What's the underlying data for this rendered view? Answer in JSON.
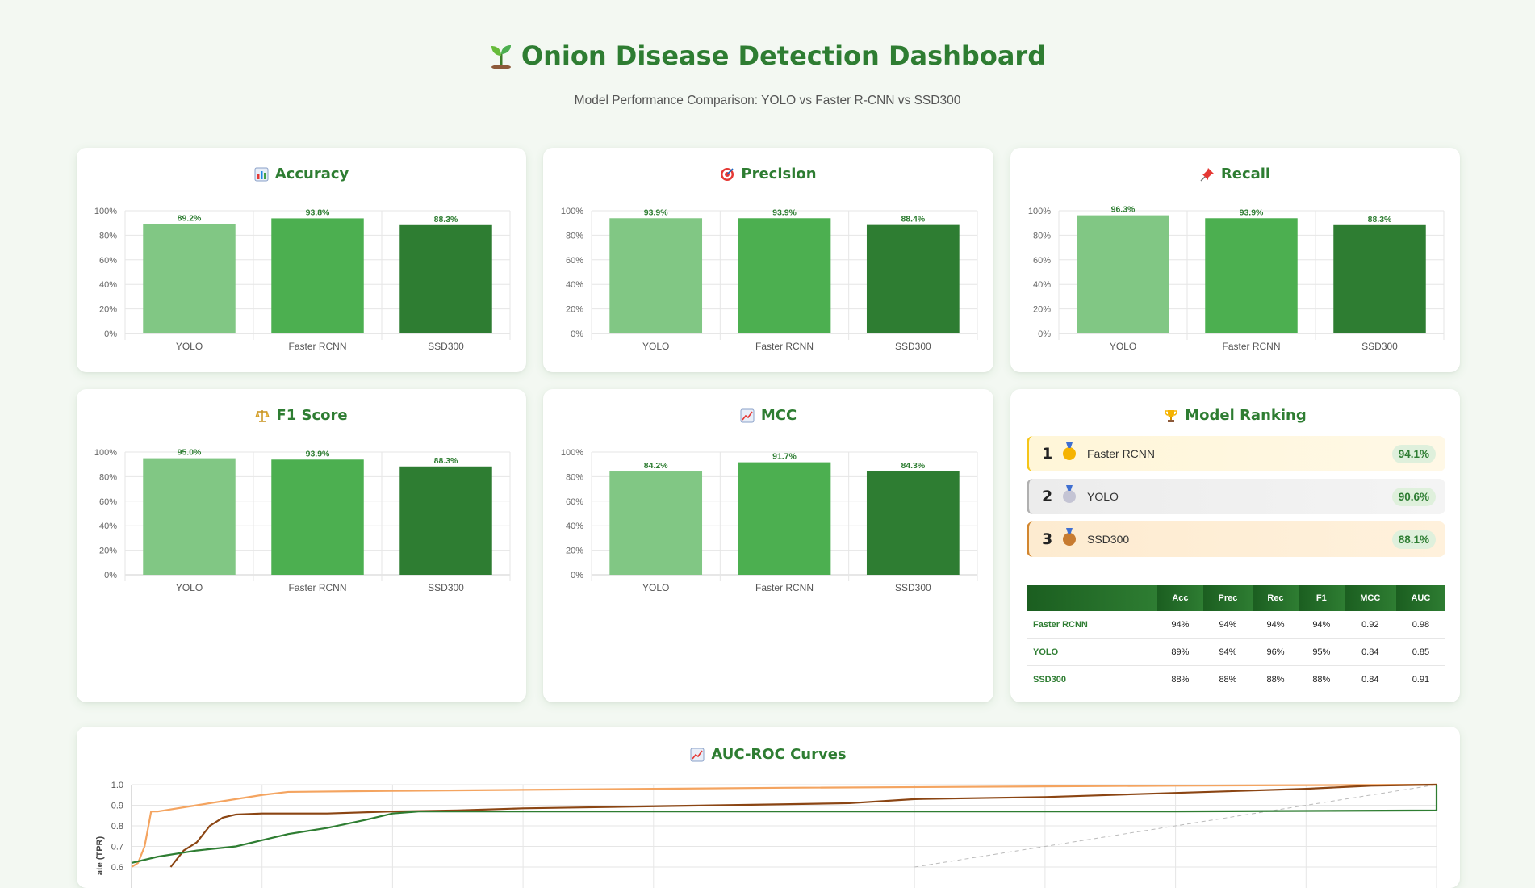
{
  "header": {
    "title": "Onion Disease Detection Dashboard",
    "subtitle": "Model Performance Comparison: YOLO vs Faster R-CNN vs SSD300",
    "icon": "seedling-icon"
  },
  "colors": {
    "yolo": "#81c784",
    "faster_rcnn": "#4caf50",
    "ssd300": "#2e7d32",
    "title": "#2e7d32"
  },
  "cards": {
    "accuracy": {
      "title": "Accuracy",
      "icon": "bar-chart-icon"
    },
    "precision": {
      "title": "Precision",
      "icon": "target-icon"
    },
    "recall": {
      "title": "Recall",
      "icon": "pushpin-icon"
    },
    "f1": {
      "title": "F1 Score",
      "icon": "balance-scale-icon"
    },
    "mcc": {
      "title": "MCC",
      "icon": "line-chart-icon"
    },
    "ranking": {
      "title": "Model Ranking",
      "icon": "trophy-icon"
    },
    "roc": {
      "title": "AUC-ROC Curves",
      "icon": "line-chart-icon"
    }
  },
  "chart_data": [
    {
      "type": "bar",
      "title": "Accuracy",
      "categories": [
        "YOLO",
        "Faster RCNN",
        "SSD300"
      ],
      "values": [
        89.2,
        93.8,
        88.3
      ],
      "labels": [
        "89.2%",
        "93.8%",
        "88.3%"
      ],
      "ylim": [
        0,
        100
      ],
      "yticks": [
        "0%",
        "20%",
        "40%",
        "60%",
        "80%",
        "100%"
      ],
      "grid": true
    },
    {
      "type": "bar",
      "title": "Precision",
      "categories": [
        "YOLO",
        "Faster RCNN",
        "SSD300"
      ],
      "values": [
        93.9,
        93.9,
        88.4
      ],
      "labels": [
        "93.9%",
        "93.9%",
        "88.4%"
      ],
      "ylim": [
        0,
        100
      ],
      "yticks": [
        "0%",
        "20%",
        "40%",
        "60%",
        "80%",
        "100%"
      ],
      "grid": true
    },
    {
      "type": "bar",
      "title": "Recall",
      "categories": [
        "YOLO",
        "Faster RCNN",
        "SSD300"
      ],
      "values": [
        96.3,
        93.9,
        88.3
      ],
      "labels": [
        "96.3%",
        "93.9%",
        "88.3%"
      ],
      "ylim": [
        0,
        100
      ],
      "yticks": [
        "0%",
        "20%",
        "40%",
        "60%",
        "80%",
        "100%"
      ],
      "grid": true
    },
    {
      "type": "bar",
      "title": "F1 Score",
      "categories": [
        "YOLO",
        "Faster RCNN",
        "SSD300"
      ],
      "values": [
        95.0,
        93.9,
        88.3
      ],
      "labels": [
        "95.0%",
        "93.9%",
        "88.3%"
      ],
      "ylim": [
        0,
        100
      ],
      "yticks": [
        "0%",
        "20%",
        "40%",
        "60%",
        "80%",
        "100%"
      ],
      "grid": true
    },
    {
      "type": "bar",
      "title": "MCC",
      "categories": [
        "YOLO",
        "Faster RCNN",
        "SSD300"
      ],
      "values": [
        84.2,
        91.7,
        84.3
      ],
      "labels": [
        "84.2%",
        "91.7%",
        "84.3%"
      ],
      "ylim": [
        0,
        100
      ],
      "yticks": [
        "0%",
        "20%",
        "40%",
        "60%",
        "80%",
        "100%"
      ],
      "grid": true
    },
    {
      "type": "line",
      "title": "AUC-ROC Curves",
      "ylabel": "ate (TPR)",
      "yticks": [
        "1.0",
        "0.9",
        "0.8",
        "0.7",
        "0.6"
      ],
      "ylim": [
        0.6,
        1.0
      ],
      "xlim": [
        0,
        1
      ],
      "grid": true,
      "series": [
        {
          "color": "#f4a460",
          "x": [
            0,
            0.005,
            0.01,
            0.013,
            0.015,
            0.02,
            0.05,
            0.1,
            0.12,
            0.2,
            0.3,
            0.5,
            0.8,
            1.0
          ],
          "y": [
            0.6,
            0.62,
            0.7,
            0.8,
            0.87,
            0.87,
            0.9,
            0.95,
            0.965,
            0.97,
            0.975,
            0.985,
            0.995,
            1.0
          ]
        },
        {
          "color": "#8b4513",
          "x": [
            0.03,
            0.04,
            0.05,
            0.06,
            0.07,
            0.08,
            0.1,
            0.15,
            0.2,
            0.25,
            0.3,
            0.35,
            0.4,
            0.45,
            0.5,
            0.55,
            0.6,
            0.7,
            0.8,
            0.9,
            0.95,
            1.0
          ],
          "y": [
            0.6,
            0.68,
            0.72,
            0.8,
            0.84,
            0.855,
            0.86,
            0.86,
            0.87,
            0.875,
            0.885,
            0.89,
            0.895,
            0.9,
            0.905,
            0.91,
            0.93,
            0.94,
            0.96,
            0.98,
            0.995,
            1.0
          ]
        },
        {
          "color": "#2e7d32",
          "x": [
            0,
            0.02,
            0.05,
            0.08,
            0.1,
            0.12,
            0.15,
            0.18,
            0.2,
            0.22,
            0.4,
            0.6,
            0.8,
            1.0,
            1.0
          ],
          "y": [
            0.62,
            0.65,
            0.68,
            0.7,
            0.73,
            0.76,
            0.79,
            0.83,
            0.86,
            0.87,
            0.87,
            0.87,
            0.87,
            0.875,
            1.0
          ]
        }
      ],
      "diagonal": true
    }
  ],
  "ranking": [
    {
      "rank": "1",
      "name": "Faster RCNN",
      "score": "94.1%",
      "medal": "gold-medal-icon"
    },
    {
      "rank": "2",
      "name": "YOLO",
      "score": "90.6%",
      "medal": "silver-medal-icon"
    },
    {
      "rank": "3",
      "name": "SSD300",
      "score": "88.1%",
      "medal": "bronze-medal-icon"
    }
  ],
  "metrics_table": {
    "headers": [
      "",
      "Acc",
      "Prec",
      "Rec",
      "F1",
      "MCC",
      "AUC"
    ],
    "rows": [
      [
        "Faster RCNN",
        "94%",
        "94%",
        "94%",
        "94%",
        "0.92",
        "0.98"
      ],
      [
        "YOLO",
        "89%",
        "94%",
        "96%",
        "95%",
        "0.84",
        "0.85"
      ],
      [
        "SSD300",
        "88%",
        "88%",
        "88%",
        "88%",
        "0.84",
        "0.91"
      ]
    ]
  }
}
